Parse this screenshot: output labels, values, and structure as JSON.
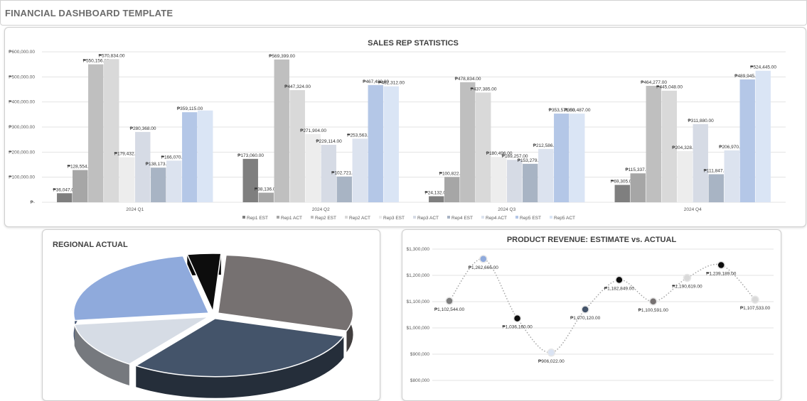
{
  "page": {
    "title": "FINANCIAL DASHBOARD TEMPLATE"
  },
  "chart_data": [
    {
      "id": "sales",
      "type": "bar",
      "title": "SALES REP STATISTICS",
      "categories": [
        "2024 Q1",
        "2024 Q2",
        "2024 Q3",
        "2024 Q4"
      ],
      "ylim": [
        0,
        600000
      ],
      "yticks": [
        0,
        100000,
        200000,
        300000,
        400000,
        500000,
        600000
      ],
      "ytick_labels": [
        "₱-",
        "₱100,000.00",
        "₱200,000.00",
        "₱300,000.00",
        "₱400,000.00",
        "₱500,000.00",
        "₱600,000.00"
      ],
      "legend_position": "bottom",
      "grid": true,
      "series": [
        {
          "name": "Rep1 EST",
          "color": "#7f7f7f",
          "values": [
            36047,
            173060,
            24132,
            69305
          ],
          "labels": [
            "₱36,047.00",
            "₱173,060.00",
            "₱24,132.00",
            "₱69,305.00"
          ]
        },
        {
          "name": "Rep1 ACT",
          "color": "#a6a6a6",
          "values": [
            128554,
            38136,
            100822,
            115337
          ],
          "labels": [
            "₱128,554.00",
            "₱38,136.00",
            "₱100,822.00",
            "₱115,337.00"
          ]
        },
        {
          "name": "Rep2 EST",
          "color": "#bfbfbf",
          "values": [
            550156,
            569399,
            478834,
            464277
          ],
          "labels": [
            "₱550,156.00",
            "₱569,399.00",
            "₱478,834.00",
            "₱464,277.00"
          ]
        },
        {
          "name": "Rep2 ACT",
          "color": "#d9d9d9",
          "values": [
            570834,
            447324,
            437385,
            445048
          ],
          "labels": [
            "₱570,834.00",
            "₱447,324.00",
            "₱437,385.00",
            "₱445,048.00"
          ]
        },
        {
          "name": "Rep3 EST",
          "color": "#ededed",
          "values": [
            179432,
            271904,
            180496,
            204328
          ],
          "labels": [
            "₱179,432.00",
            "₱271,904.00",
            "₱180,496.00",
            "₱204,328.00"
          ]
        },
        {
          "name": "Rep3 ACT",
          "color": "#d6dbe5",
          "values": [
            280368,
            229114,
            169257,
            311880
          ],
          "labels": [
            "₱280,368.00",
            "₱229,114.00",
            "₱169,257.00",
            "₱311,880.00"
          ]
        },
        {
          "name": "Rep4 EST",
          "color": "#a8b4c4",
          "values": [
            138173,
            102721,
            153279,
            111847
          ],
          "labels": [
            "₱138,173.00",
            "₱102,721.00",
            "₱153,279.00",
            "₱111,847.00"
          ]
        },
        {
          "name": "Rep4 ACT",
          "color": "#dce3ef",
          "values": [
            166070,
            253563,
            212586,
            206970
          ],
          "labels": [
            "₱166,070.00",
            "₱253,563.00",
            "₱212,586.00",
            "₱206,970.00"
          ]
        },
        {
          "name": "Rep5 EST",
          "color": "#b4c7e7",
          "values": [
            359115,
            467489,
            353571,
            489945
          ],
          "labels": [
            "₱359,115.00",
            "₱467,489.00",
            "₱353,571.00",
            "₱489,945.00"
          ]
        },
        {
          "name": "Rep5 ACT",
          "color": "#dae5f5",
          "values": [
            366000,
            462312,
            353487,
            524445
          ],
          "labels": [
            "",
            "₱462,312.00",
            "₱353,487.00",
            "₱524,445.00"
          ]
        }
      ]
    },
    {
      "id": "regional",
      "type": "pie",
      "title": "REGIONAL ACTUAL",
      "slices": [
        {
          "value": 29,
          "color": "#767171"
        },
        {
          "value": 30,
          "color": "#44546a"
        },
        {
          "value": 13,
          "color": "#d6dce5"
        },
        {
          "value": 24,
          "color": "#8faadc"
        },
        {
          "value": 4,
          "color": "#0d0d0d"
        }
      ]
    },
    {
      "id": "product",
      "type": "line",
      "title": "PRODUCT REVENUE: ESTIMATE vs. ACTUAL",
      "ylim": [
        800000,
        1300000
      ],
      "yticks": [
        800000,
        900000,
        1000000,
        1100000,
        1200000,
        1300000
      ],
      "ytick_labels": [
        "$800,000",
        "$900,000",
        "$1,000,000",
        "$1,100,000",
        "$1,200,000",
        "$1,300,000"
      ],
      "grid": true,
      "points": [
        {
          "value": 1102544,
          "label": "₱1,102,544.00",
          "color": "#7f7f7f"
        },
        {
          "value": 1262666,
          "label": "₱1,262,666.00",
          "color": "#8faadc"
        },
        {
          "value": 1036160,
          "label": "₱1,036,160.00",
          "color": "#0d0d0d"
        },
        {
          "value": 906022,
          "label": "₱906,022.00",
          "color": "#dae3f3"
        },
        {
          "value": 1070120,
          "label": "₱1,070,120.00",
          "color": "#44546a"
        },
        {
          "value": 1182849,
          "label": "₱1,182,849.00",
          "color": "#0d0d0d"
        },
        {
          "value": 1100591,
          "label": "₱1,100,591.00",
          "color": "#767171"
        },
        {
          "value": 1190619,
          "label": "₱1,190,619.00",
          "color": "#d9d9d9"
        },
        {
          "value": 1239189,
          "label": "₱1,239,189.00",
          "color": "#0d0d0d"
        },
        {
          "value": 1107533,
          "label": "₱1,107,533.00",
          "color": "#d9d9d9"
        }
      ]
    }
  ]
}
